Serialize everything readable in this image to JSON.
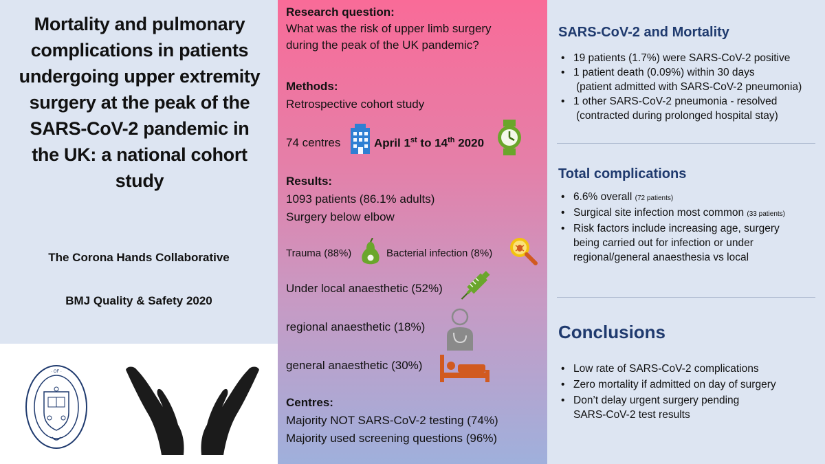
{
  "left": {
    "title": "Mortality and pulmonary complications in patients undergoing upper extremity surgery at the peak of the SARS-CoV-2 pandemic in the UK: a national cohort study",
    "collaborative": "The Corona Hands Collaborative",
    "journal": "BMJ Quality & Safety 2020",
    "logo_text": "UNIVERSITY OF OXFORD"
  },
  "middle": {
    "research_question_head": "Research question:",
    "research_question_l1": "What was the risk of upper limb surgery",
    "research_question_l2": "during the peak of the UK pandemic?",
    "methods_head": "Methods:",
    "methods_text": "Retrospective cohort study",
    "centres_count": "74 centres",
    "dates_a": "April 1",
    "dates_sup1": "st",
    "dates_b": " to 14",
    "dates_sup2": "th",
    "dates_c": " 2020",
    "results_head": "Results:",
    "results_l1": "1093 patients (86.1% adults)",
    "results_l2": "Surgery below elbow",
    "trauma": "Trauma (88%)",
    "bacterial": "Bacterial infection (8%)",
    "local": "Under local anaesthetic (52%)",
    "regional": "regional anaesthetic (18%)",
    "general": "general anaesthetic (30%)",
    "centres_head": "Centres:",
    "centres_l1": "Majority NOT SARS-CoV-2 testing (74%)",
    "centres_l2": "Majority used screening questions (96%)"
  },
  "right": {
    "mortality_head": "SARS-CoV-2 and Mortality",
    "mortality_items": [
      "19 patients (1.7%)  were SARS-CoV-2 positive",
      "1 patient death (0.09%) within 30 days",
      "1 other SARS-CoV-2 pneumonia - resolved"
    ],
    "mortality_sub1": "(patient admitted with SARS-CoV-2 pneumonia)",
    "mortality_sub3": "(contracted during prolonged hospital stay)",
    "complications_head": "Total complications",
    "comp_1": "6.6% overall ",
    "comp_1_small": "(72 patients)",
    "comp_2": "Surgical site infection most common ",
    "comp_2_small": "(33 patients)",
    "comp_3_l1": "Risk factors include increasing age, surgery",
    "comp_3_l2": "being carried out for infection or under",
    "comp_3_l3": "regional/general anaesthesia vs local",
    "conclusions_head": "Conclusions",
    "conc_1": "Low rate of SARS-CoV-2 complications",
    "conc_2": "Zero mortality if admitted on day of surgery",
    "conc_3_l1": "Don’t delay urgent surgery pending",
    "conc_3_l2": "SARS-CoV-2 test results",
    "bullet": "•"
  },
  "icons": {
    "building": "building-icon",
    "watch": "watch-icon",
    "pear": "pear-icon",
    "bug": "bug-magnifier-icon",
    "syringe": "syringe-icon",
    "person": "person-icon",
    "bed": "bed-icon",
    "hands": "hands-icon",
    "crest": "oxford-crest-icon"
  },
  "colors": {
    "heading_blue": "#1f3a6e",
    "icon_blue": "#2f7fd3",
    "icon_green": "#6aa62b",
    "icon_orange": "#d15a1f"
  }
}
